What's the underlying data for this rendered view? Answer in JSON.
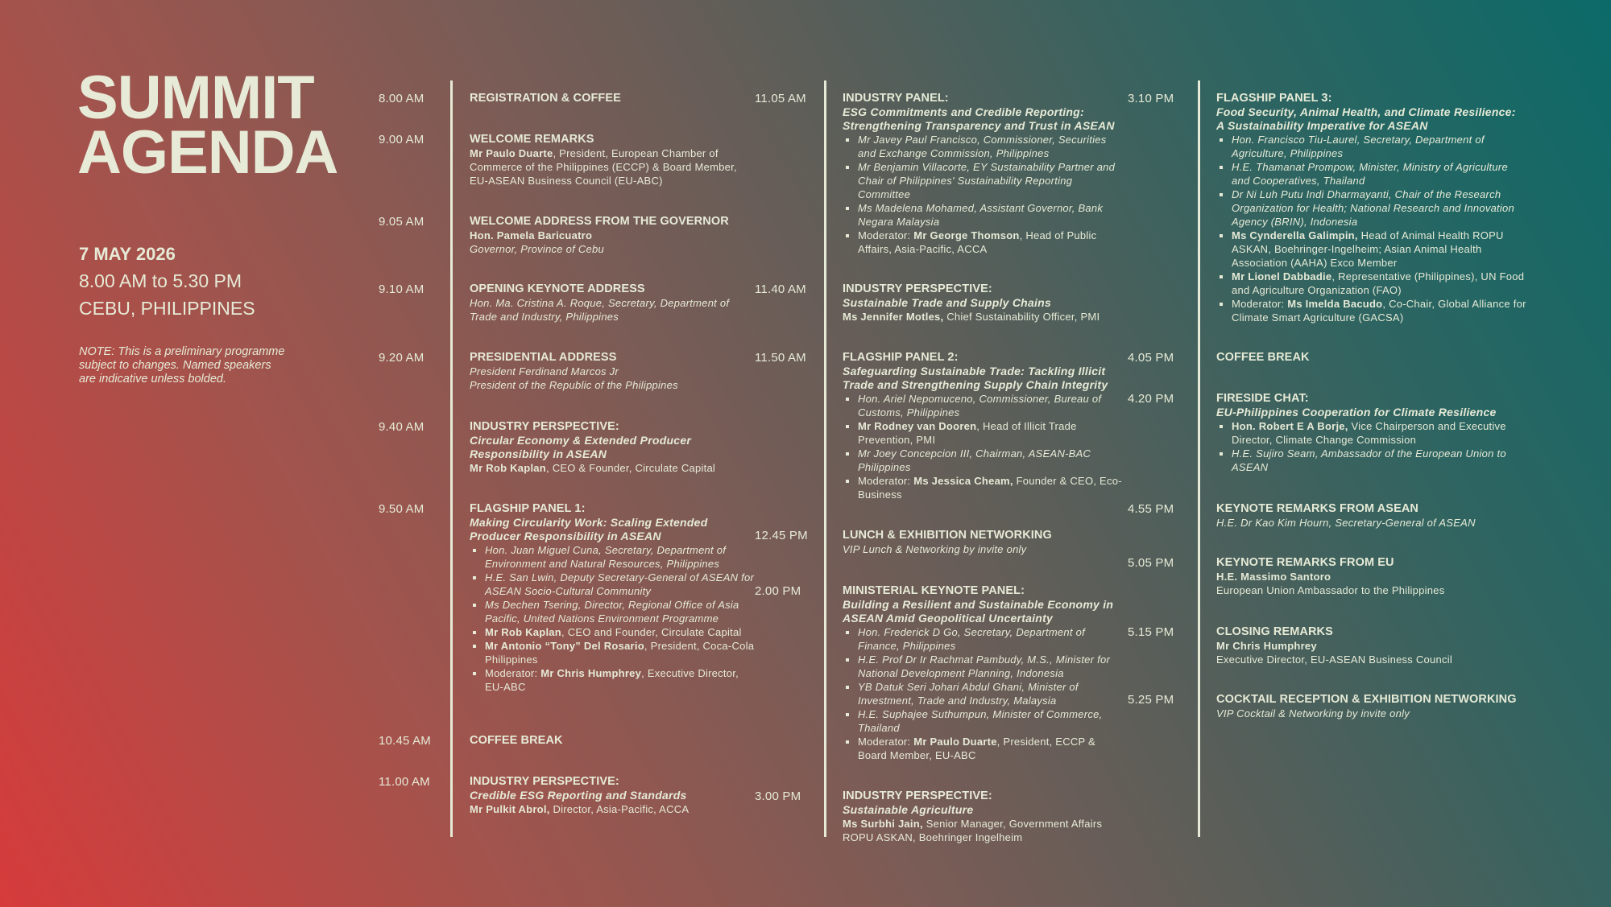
{
  "header": {
    "title_line1": "SUMMIT",
    "title_line2": "AGENDA",
    "date": "7 MAY 2026",
    "hours": "8.00 AM to 5.30 PM",
    "location": "CEBU, PHILIPPINES",
    "note": "NOTE: This is a preliminary programme subject to changes. Named speakers are indicative unless bolded."
  },
  "colors": {
    "text": "#e6ead6",
    "gradient_start": "#d63b3b",
    "gradient_end": "#0b6a68"
  },
  "columns": [
    {
      "items": [
        {
          "time": "8.00 AM",
          "title": "REGISTRATION & COFFEE"
        },
        {
          "time": "9.00 AM",
          "title": "WELCOME REMARKS",
          "details": [
            {
              "bold": "Mr Paulo Duarte",
              "text": ", President, European Chamber of Commerce of the Philippines (ECCP) & Board Member, EU-ASEAN Business Council (EU-ABC)"
            }
          ]
        },
        {
          "time": "9.05 AM",
          "title": "WELCOME ADDRESS FROM THE GOVERNOR",
          "details": [
            {
              "bold": "Hon. Pamela Baricuatro",
              "text": ""
            },
            {
              "text": "Governor, Province of Cebu",
              "italic": true
            }
          ]
        },
        {
          "time": "9.10 AM",
          "title": "OPENING KEYNOTE ADDRESS",
          "details": [
            {
              "text": "Hon. Ma. Cristina A. Roque, Secretary, Department of Trade and Industry, Philippines",
              "italic": true
            }
          ]
        },
        {
          "time": "9.20 AM",
          "title": "PRESIDENTIAL ADDRESS",
          "details": [
            {
              "text": "President Ferdinand Marcos Jr",
              "italic": true
            },
            {
              "text": "President of the Republic of the Philippines",
              "italic": true
            }
          ]
        },
        {
          "time": "9.40 AM",
          "title": "INDUSTRY PERSPECTIVE:",
          "subtitle": "Circular Economy & Extended Producer Responsibility in ASEAN",
          "details": [
            {
              "bold": "Mr Rob Kaplan",
              "text": ", CEO & Founder, Circulate Capital"
            }
          ]
        },
        {
          "time": "9.50 AM",
          "title": "FLAGSHIP PANEL 1:",
          "subtitle": "Making Circularity Work: Scaling Extended Producer Responsibility in ASEAN",
          "bullets": [
            {
              "text": "Hon. Juan Miguel Cuna, Secretary, Department of Environment and Natural Resources, Philippines",
              "italic": true
            },
            {
              "text": "H.E. San Lwin, Deputy Secretary-General of ASEAN for ASEAN Socio-Cultural Community",
              "italic": true
            },
            {
              "text": "Ms Dechen Tsering, Director, Regional Office of Asia Pacific, United Nations Environment Programme",
              "italic": true
            },
            {
              "bold": "Mr Rob Kaplan",
              "text": ", CEO and Founder, Circulate Capital"
            },
            {
              "bold": "Mr Antonio “Tony” Del Rosario",
              "text": ", President, Coca-Cola Philippines"
            },
            {
              "prefix": "Moderator: ",
              "bold": "Mr Chris Humphrey",
              "text": ", Executive Director, EU-ABC"
            }
          ]
        },
        {
          "time": "10.45 AM",
          "title": "COFFEE BREAK"
        },
        {
          "time": "11.00 AM",
          "title": "INDUSTRY PERSPECTIVE:",
          "subtitle": "Credible ESG Reporting and Standards",
          "details": [
            {
              "bold": "Mr Pulkit Abrol,",
              "text": " Director, Asia-Pacific, ACCA"
            }
          ]
        }
      ]
    },
    {
      "items": [
        {
          "time": "11.05 AM",
          "title": "INDUSTRY PANEL:",
          "subtitle": "ESG Commitments and Credible Reporting: Strengthening Transparency and Trust in ASEAN",
          "bullets": [
            {
              "text": "Mr Javey Paul Francisco, Commissioner, Securities and Exchange Commission, Philippines",
              "italic": true
            },
            {
              "text": "Mr Benjamin Villacorte, EY Sustainability Partner and Chair of Philippines' Sustainability Reporting Committee",
              "italic": true
            },
            {
              "text": "Ms Madelena Mohamed, Assistant Governor, Bank Negara Malaysia",
              "italic": true
            },
            {
              "prefix": "Moderator: ",
              "bold": "Mr George Thomson",
              "text": ", Head of Public Affairs, Asia-Pacific, ACCA"
            }
          ]
        },
        {
          "time": "11.40 AM",
          "title": "INDUSTRY PERSPECTIVE:",
          "subtitle": "Sustainable Trade and Supply Chains",
          "details": [
            {
              "bold": "Ms Jennifer Motles,",
              "text": " Chief Sustainability Officer, PMI"
            }
          ]
        },
        {
          "time": "11.50 AM",
          "title": "FLAGSHIP PANEL 2:",
          "subtitle": "Safeguarding Sustainable Trade: Tackling Illicit Trade and Strengthening Supply Chain Integrity",
          "bullets": [
            {
              "text": "Hon. Ariel Nepomuceno, Commissioner, Bureau of Customs, Philippines",
              "italic": true
            },
            {
              "bold": "Mr Rodney van Dooren",
              "text": ", Head of Illicit Trade Prevention, PMI"
            },
            {
              "text": "Mr Joey Concepcion III, Chairman, ASEAN-BAC Philippines",
              "italic": true
            },
            {
              "prefix": "Moderator: ",
              "bold": "Ms Jessica Cheam,",
              "text": " Founder & CEO, Eco-Business"
            }
          ]
        },
        {
          "time": "12.45 PM",
          "title": "LUNCH & EXHIBITION NETWORKING",
          "details": [
            {
              "text": "VIP Lunch & Networking by invite only",
              "italic": true
            }
          ]
        },
        {
          "time": "2.00 PM",
          "title": "MINISTERIAL KEYNOTE PANEL:",
          "subtitle": "Building a Resilient and Sustainable Economy in ASEAN Amid Geopolitical Uncertainty",
          "bullets": [
            {
              "text": "Hon. Frederick D Go, Secretary, Department of Finance, Philippines",
              "italic": true
            },
            {
              "text": "H.E. Prof Dr Ir Rachmat Pambudy, M.S., Minister for National Development Planning, Indonesia",
              "italic": true
            },
            {
              "text": "YB Datuk Seri Johari Abdul Ghani, Minister of Investment, Trade and Industry, Malaysia",
              "italic": true
            },
            {
              "text": "H.E. Suphajee Suthumpun, Minister of Commerce, Thailand",
              "italic": true
            },
            {
              "prefix": "Moderator: ",
              "bold": "Mr Paulo Duarte",
              "text": ", President, ECCP & Board Member, EU-ABC"
            }
          ]
        },
        {
          "time": "3.00 PM",
          "title": "INDUSTRY PERSPECTIVE:",
          "subtitle": "Sustainable Agriculture",
          "details": [
            {
              "bold": "Ms Surbhi Jain,",
              "text": " Senior Manager, Government Affairs ROPU ASKAN, Boehringer Ingelheim"
            }
          ]
        }
      ]
    },
    {
      "items": [
        {
          "time": "3.10 PM",
          "title": "FLAGSHIP PANEL 3:",
          "subtitle": "Food Security, Animal Health, and Climate Resilience: A Sustainability Imperative for ASEAN",
          "bullets": [
            {
              "text": "Hon. Francisco Tiu-Laurel, Secretary, Department of Agriculture, Philippines",
              "italic": true
            },
            {
              "text": "H.E. Thamanat Prompow, Minister, Ministry of Agriculture and Cooperatives, Thailand",
              "italic": true
            },
            {
              "text": "Dr Ni Luh Putu Indi Dharmayanti, Chair of the Research Organization for Health; National Research and Innovation Agency (BRIN), Indonesia",
              "italic": true
            },
            {
              "bold": "Ms Cynderella Galimpin,",
              "text": " Head of Animal Health ROPU ASKAN, Boehringer-Ingelheim; Asian Animal Health Association (AAHA) Exco Member"
            },
            {
              "bold": "Mr Lionel Dabbadie",
              "text": ", Representative (Philippines), UN Food and Agriculture Organization (FAO)"
            },
            {
              "prefix": "Moderator: ",
              "bold": "Ms Imelda Bacudo",
              "text": ", Co-Chair, Global Alliance for Climate Smart Agriculture (GACSA)"
            }
          ]
        },
        {
          "time": "4.05 PM",
          "title": "COFFEE BREAK"
        },
        {
          "time": "4.20 PM",
          "title": "FIRESIDE CHAT:",
          "subtitle": "EU-Philippines Cooperation for Climate Resilience",
          "bullets": [
            {
              "bold": "Hon. Robert E A Borje,",
              "text": " Vice Chairperson and Executive Director, Climate Change Commission"
            },
            {
              "text": "H.E. Sujiro Seam, Ambassador of the European Union to ASEAN",
              "italic": true
            }
          ]
        },
        {
          "time": "4.55 PM",
          "title": "KEYNOTE REMARKS FROM ASEAN",
          "details": [
            {
              "text": "H.E. Dr Kao Kim Hourn, Secretary-General of ASEAN",
              "italic": true
            }
          ]
        },
        {
          "time": "5.05 PM",
          "title": "KEYNOTE REMARKS FROM EU",
          "details": [
            {
              "bold": "H.E. Massimo Santoro",
              "text": ""
            },
            {
              "text": "European Union Ambassador to the Philippines"
            }
          ]
        },
        {
          "time": "5.15 PM",
          "title": "CLOSING REMARKS",
          "details": [
            {
              "bold": "Mr Chris Humphrey",
              "text": ""
            },
            {
              "text": "Executive Director, EU-ASEAN Business Council"
            }
          ]
        },
        {
          "time": "5.25 PM",
          "title": "COCKTAIL RECEPTION & EXHIBITION NETWORKING",
          "details": [
            {
              "text": "VIP Cocktail & Networking by invite only",
              "italic": true
            }
          ]
        }
      ]
    }
  ]
}
